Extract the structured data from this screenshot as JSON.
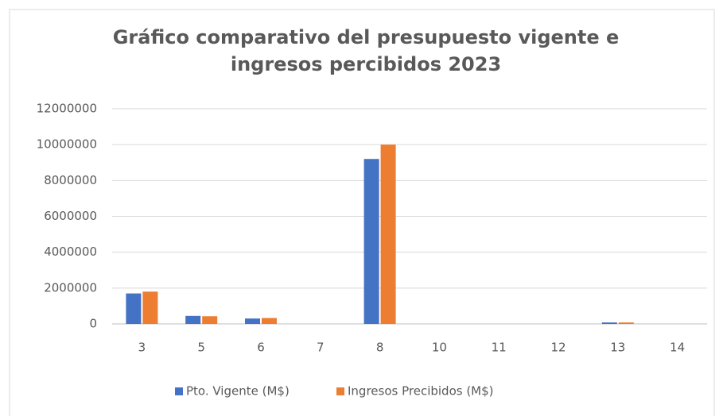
{
  "chart_data": {
    "type": "bar",
    "title": "Gráfico comparativo del presupuesto vigente e ingresos percibidos 2023",
    "categories": [
      "3",
      "5",
      "6",
      "7",
      "8",
      "10",
      "11",
      "12",
      "13",
      "14"
    ],
    "series": [
      {
        "name": "Pto. Vigente (M$)",
        "color": "#4472c4",
        "values": [
          1700000,
          450000,
          300000,
          0,
          9200000,
          0,
          0,
          0,
          80000,
          0
        ]
      },
      {
        "name": "Ingresos Precibidos (M$)",
        "color": "#ed7d31",
        "values": [
          1800000,
          430000,
          330000,
          0,
          10000000,
          0,
          0,
          0,
          80000,
          0
        ]
      }
    ],
    "ylim": [
      0,
      12000000
    ],
    "yticks": [
      0,
      2000000,
      4000000,
      6000000,
      8000000,
      10000000,
      12000000
    ],
    "grid": true,
    "legend": "bottom"
  }
}
